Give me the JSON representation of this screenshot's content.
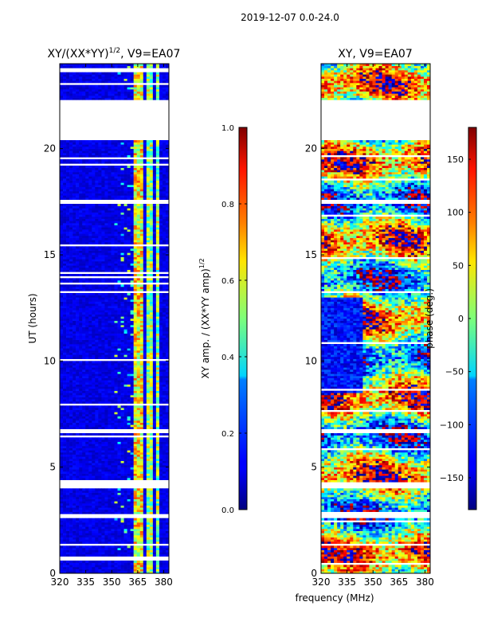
{
  "suptitle": "2019-12-07 0.0-24.0",
  "chart_data": [
    {
      "type": "heatmap",
      "title_prefix": "XY/(XX*YY)",
      "title_exponent": "1/2",
      "title_suffix": ", V9=EA07",
      "xlabel": "",
      "ylabel": "UT (hours)",
      "xlim": [
        320,
        383
      ],
      "ylim": [
        0,
        24
      ],
      "xticks": [
        320,
        335,
        350,
        365,
        380
      ],
      "yticks": [
        0,
        5,
        10,
        15,
        20
      ],
      "flagged_time_ranges": [
        [
          20.4,
          22.3
        ],
        [
          17.45,
          17.6
        ],
        [
          13.2,
          13.3
        ],
        [
          6.6,
          6.8
        ],
        [
          4.05,
          4.25
        ],
        [
          2.6,
          2.75
        ],
        [
          1.3,
          1.45
        ]
      ],
      "bright_channel_bands": [
        [
          362,
          368
        ],
        [
          370,
          373
        ],
        [
          375,
          378
        ]
      ],
      "colorbar": {
        "label_prefix": "XY amp. / (XX*YY amp)",
        "label_exponent": "1/2",
        "range": [
          0.0,
          1.0
        ],
        "ticks": [
          "0.0",
          "0.2",
          "0.4",
          "0.6",
          "0.8",
          "1.0"
        ]
      }
    },
    {
      "type": "heatmap",
      "title": "XY, V9=EA07",
      "xlabel": "frequency (MHz)",
      "ylabel": "",
      "xlim": [
        320,
        383
      ],
      "ylim": [
        0,
        24
      ],
      "xticks": [
        320,
        335,
        350,
        365,
        380
      ],
      "yticks": [
        0,
        5,
        10,
        15,
        20
      ],
      "flagged_time_ranges": [
        [
          20.4,
          22.3
        ],
        [
          17.45,
          17.6
        ],
        [
          13.2,
          13.3
        ],
        [
          6.6,
          6.8
        ],
        [
          4.05,
          4.25
        ],
        [
          2.6,
          2.75
        ],
        [
          1.3,
          1.45
        ]
      ],
      "colorbar": {
        "label": "phase (deg.)",
        "range": [
          -180,
          180
        ],
        "ticks": [
          "150",
          "100",
          "50",
          "0",
          "−50",
          "−100",
          "−150"
        ],
        "tick_values": [
          150,
          100,
          50,
          0,
          -50,
          -100,
          -150
        ]
      }
    }
  ]
}
